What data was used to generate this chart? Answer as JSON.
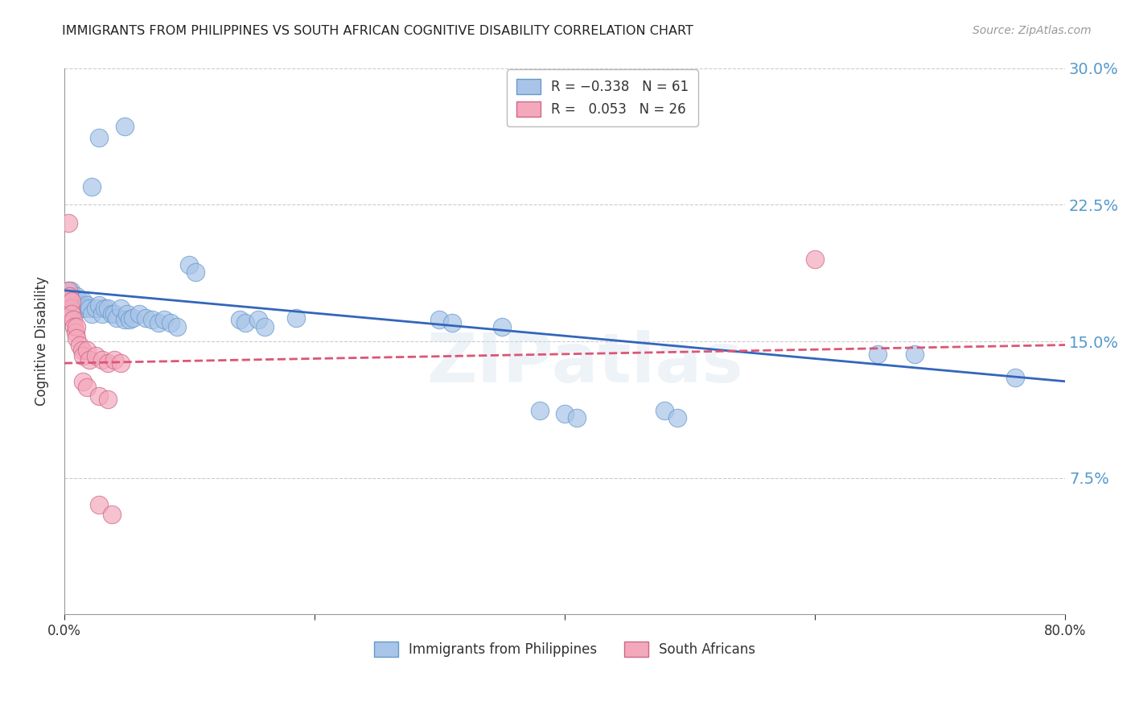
{
  "title": "IMMIGRANTS FROM PHILIPPINES VS SOUTH AFRICAN COGNITIVE DISABILITY CORRELATION CHART",
  "source": "Source: ZipAtlas.com",
  "ylabel": "Cognitive Disability",
  "watermark": "ZIPatlas",
  "xlim": [
    0.0,
    0.8
  ],
  "ylim": [
    0.0,
    0.3
  ],
  "yticks": [
    0.075,
    0.15,
    0.225,
    0.3
  ],
  "ytick_labels": [
    "7.5%",
    "15.0%",
    "22.5%",
    "30.0%"
  ],
  "xticks": [
    0.0,
    0.2,
    0.4,
    0.6,
    0.8
  ],
  "xtick_labels": [
    "0.0%",
    "",
    "",
    "",
    "80.0%"
  ],
  "series1_color": "#a8c4e8",
  "series2_color": "#f4a8bc",
  "series1_edge": "#6699cc",
  "series2_edge": "#cc6688",
  "trend1_color": "#3366bb",
  "trend2_color": "#dd5577",
  "background_color": "#ffffff",
  "grid_color": "#cccccc",
  "axis_color": "#999999",
  "right_label_color": "#5599cc",
  "title_color": "#222222",
  "trend1_x": [
    0.0,
    0.8
  ],
  "trend1_y": [
    0.178,
    0.128
  ],
  "trend2_x": [
    0.0,
    0.8
  ],
  "trend2_y": [
    0.138,
    0.148
  ],
  "blue_points": [
    [
      0.003,
      0.178
    ],
    [
      0.004,
      0.175
    ],
    [
      0.005,
      0.178
    ],
    [
      0.005,
      0.172
    ],
    [
      0.006,
      0.175
    ],
    [
      0.006,
      0.17
    ],
    [
      0.007,
      0.172
    ],
    [
      0.007,
      0.168
    ],
    [
      0.008,
      0.173
    ],
    [
      0.008,
      0.17
    ],
    [
      0.009,
      0.168
    ],
    [
      0.009,
      0.172
    ],
    [
      0.01,
      0.175
    ],
    [
      0.01,
      0.17
    ],
    [
      0.011,
      0.168
    ],
    [
      0.012,
      0.172
    ],
    [
      0.013,
      0.17
    ],
    [
      0.014,
      0.168
    ],
    [
      0.015,
      0.172
    ],
    [
      0.016,
      0.168
    ],
    [
      0.018,
      0.17
    ],
    [
      0.02,
      0.168
    ],
    [
      0.022,
      0.165
    ],
    [
      0.025,
      0.168
    ],
    [
      0.028,
      0.17
    ],
    [
      0.03,
      0.165
    ],
    [
      0.032,
      0.168
    ],
    [
      0.035,
      0.168
    ],
    [
      0.038,
      0.165
    ],
    [
      0.04,
      0.165
    ],
    [
      0.042,
      0.163
    ],
    [
      0.045,
      0.168
    ],
    [
      0.048,
      0.162
    ],
    [
      0.05,
      0.165
    ],
    [
      0.052,
      0.162
    ],
    [
      0.055,
      0.163
    ],
    [
      0.06,
      0.165
    ],
    [
      0.065,
      0.163
    ],
    [
      0.07,
      0.162
    ],
    [
      0.075,
      0.16
    ],
    [
      0.08,
      0.162
    ],
    [
      0.085,
      0.16
    ],
    [
      0.09,
      0.158
    ],
    [
      0.1,
      0.192
    ],
    [
      0.105,
      0.188
    ],
    [
      0.14,
      0.162
    ],
    [
      0.145,
      0.16
    ],
    [
      0.155,
      0.162
    ],
    [
      0.16,
      0.158
    ],
    [
      0.185,
      0.163
    ],
    [
      0.3,
      0.162
    ],
    [
      0.31,
      0.16
    ],
    [
      0.35,
      0.158
    ],
    [
      0.38,
      0.112
    ],
    [
      0.4,
      0.11
    ],
    [
      0.41,
      0.108
    ],
    [
      0.48,
      0.112
    ],
    [
      0.49,
      0.108
    ],
    [
      0.65,
      0.143
    ],
    [
      0.68,
      0.143
    ],
    [
      0.76,
      0.13
    ],
    [
      0.028,
      0.262
    ],
    [
      0.048,
      0.268
    ],
    [
      0.022,
      0.235
    ]
  ],
  "pink_points": [
    [
      0.003,
      0.178
    ],
    [
      0.004,
      0.175
    ],
    [
      0.005,
      0.168
    ],
    [
      0.006,
      0.172
    ],
    [
      0.006,
      0.165
    ],
    [
      0.007,
      0.162
    ],
    [
      0.008,
      0.158
    ],
    [
      0.009,
      0.155
    ],
    [
      0.01,
      0.158
    ],
    [
      0.01,
      0.152
    ],
    [
      0.012,
      0.148
    ],
    [
      0.014,
      0.145
    ],
    [
      0.015,
      0.142
    ],
    [
      0.018,
      0.145
    ],
    [
      0.02,
      0.14
    ],
    [
      0.025,
      0.142
    ],
    [
      0.03,
      0.14
    ],
    [
      0.035,
      0.138
    ],
    [
      0.04,
      0.14
    ],
    [
      0.045,
      0.138
    ],
    [
      0.003,
      0.215
    ],
    [
      0.015,
      0.128
    ],
    [
      0.018,
      0.125
    ],
    [
      0.028,
      0.12
    ],
    [
      0.035,
      0.118
    ],
    [
      0.6,
      0.195
    ],
    [
      0.028,
      0.06
    ],
    [
      0.038,
      0.055
    ]
  ]
}
